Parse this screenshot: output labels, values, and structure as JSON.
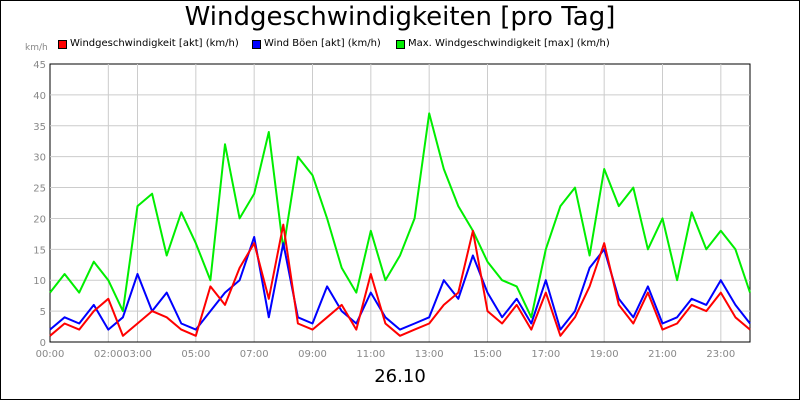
{
  "title": "Windgeschwindigkeiten [pro Tag]",
  "date_label": "26.10",
  "unit_label": "km/h",
  "legend": [
    {
      "label": "Windgeschwindigkeit [akt] (km/h)",
      "color": "#ff0000"
    },
    {
      "label": "Wind Böen [akt] (km/h)",
      "color": "#0000ff"
    },
    {
      "label": "Max. Windgeschwindigkeit [max] (km/h)",
      "color": "#00ee00"
    }
  ],
  "chart_data": {
    "type": "line",
    "title": "Windgeschwindigkeiten [pro Tag]",
    "ylabel": "km/h",
    "xlabel": "26.10",
    "ylim": [
      0,
      45
    ],
    "y_ticks": [
      0,
      5,
      10,
      15,
      20,
      25,
      30,
      35,
      40,
      45
    ],
    "xlim": [
      "00:00",
      "24:00"
    ],
    "x_ticks": [
      "00:00",
      "02:00",
      "03:00",
      "05:00",
      "07:00",
      "09:00",
      "11:00",
      "13:00",
      "15:00",
      "17:00",
      "19:00",
      "21:00",
      "23:00"
    ],
    "x_tick_minutes": [
      0,
      120,
      180,
      300,
      420,
      540,
      660,
      780,
      900,
      1020,
      1140,
      1260,
      1380
    ],
    "grid": true,
    "legend_position": "top",
    "series": [
      {
        "name": "Windgeschwindigkeit [akt] (km/h)",
        "color": "#ff0000",
        "x": [
          "00:00",
          "00:30",
          "01:00",
          "01:30",
          "02:00",
          "02:30",
          "03:00",
          "03:30",
          "04:00",
          "04:30",
          "05:00",
          "05:30",
          "06:00",
          "06:30",
          "07:00",
          "07:30",
          "08:00",
          "08:30",
          "09:00",
          "09:30",
          "10:00",
          "10:30",
          "11:00",
          "11:30",
          "12:00",
          "12:30",
          "13:00",
          "13:30",
          "14:00",
          "14:30",
          "15:00",
          "15:30",
          "16:00",
          "16:30",
          "17:00",
          "17:30",
          "18:00",
          "18:30",
          "19:00",
          "19:30",
          "20:00",
          "20:30",
          "21:00",
          "21:30",
          "22:00",
          "22:30",
          "23:00",
          "23:30",
          "24:00"
        ],
        "values": [
          1,
          3,
          2,
          5,
          7,
          1,
          3,
          5,
          4,
          2,
          1,
          9,
          6,
          12,
          16,
          7,
          19,
          3,
          2,
          4,
          6,
          2,
          11,
          3,
          1,
          2,
          3,
          6,
          8,
          18,
          5,
          3,
          6,
          2,
          8,
          1,
          4,
          9,
          16,
          6,
          3,
          8,
          2,
          3,
          6,
          5,
          8,
          4,
          2
        ]
      },
      {
        "name": "Wind Böen [akt] (km/h)",
        "color": "#0000ff",
        "x": [
          "00:00",
          "00:30",
          "01:00",
          "01:30",
          "02:00",
          "02:30",
          "03:00",
          "03:30",
          "04:00",
          "04:30",
          "05:00",
          "05:30",
          "06:00",
          "06:30",
          "07:00",
          "07:30",
          "08:00",
          "08:30",
          "09:00",
          "09:30",
          "10:00",
          "10:30",
          "11:00",
          "11:30",
          "12:00",
          "12:30",
          "13:00",
          "13:30",
          "14:00",
          "14:30",
          "15:00",
          "15:30",
          "16:00",
          "16:30",
          "17:00",
          "17:30",
          "18:00",
          "18:30",
          "19:00",
          "19:30",
          "20:00",
          "20:30",
          "21:00",
          "21:30",
          "22:00",
          "22:30",
          "23:00",
          "23:30",
          "24:00"
        ],
        "values": [
          2,
          4,
          3,
          6,
          2,
          4,
          11,
          5,
          8,
          3,
          2,
          5,
          8,
          10,
          17,
          4,
          16,
          4,
          3,
          9,
          5,
          3,
          8,
          4,
          2,
          3,
          4,
          10,
          7,
          14,
          8,
          4,
          7,
          3,
          10,
          2,
          5,
          12,
          15,
          7,
          4,
          9,
          3,
          4,
          7,
          6,
          10,
          6,
          3
        ]
      },
      {
        "name": "Max. Windgeschwindigkeit [max] (km/h)",
        "color": "#00ee00",
        "x": [
          "00:00",
          "00:30",
          "01:00",
          "01:30",
          "02:00",
          "02:30",
          "03:00",
          "03:30",
          "04:00",
          "04:30",
          "05:00",
          "05:30",
          "06:00",
          "06:30",
          "07:00",
          "07:30",
          "08:00",
          "08:30",
          "09:00",
          "09:30",
          "10:00",
          "10:30",
          "11:00",
          "11:30",
          "12:00",
          "12:30",
          "13:00",
          "13:30",
          "14:00",
          "14:30",
          "15:00",
          "15:30",
          "16:00",
          "16:30",
          "17:00",
          "17:30",
          "18:00",
          "18:30",
          "19:00",
          "19:30",
          "20:00",
          "20:30",
          "21:00",
          "21:30",
          "22:00",
          "22:30",
          "23:00",
          "23:30",
          "24:00"
        ],
        "values": [
          8,
          11,
          8,
          13,
          10,
          5,
          22,
          24,
          14,
          21,
          16,
          10,
          32,
          20,
          24,
          34,
          15,
          30,
          27,
          20,
          12,
          8,
          18,
          10,
          14,
          20,
          37,
          28,
          22,
          18,
          13,
          10,
          9,
          4,
          15,
          22,
          25,
          14,
          28,
          22,
          25,
          15,
          20,
          10,
          21,
          15,
          18,
          15,
          8
        ]
      }
    ]
  }
}
